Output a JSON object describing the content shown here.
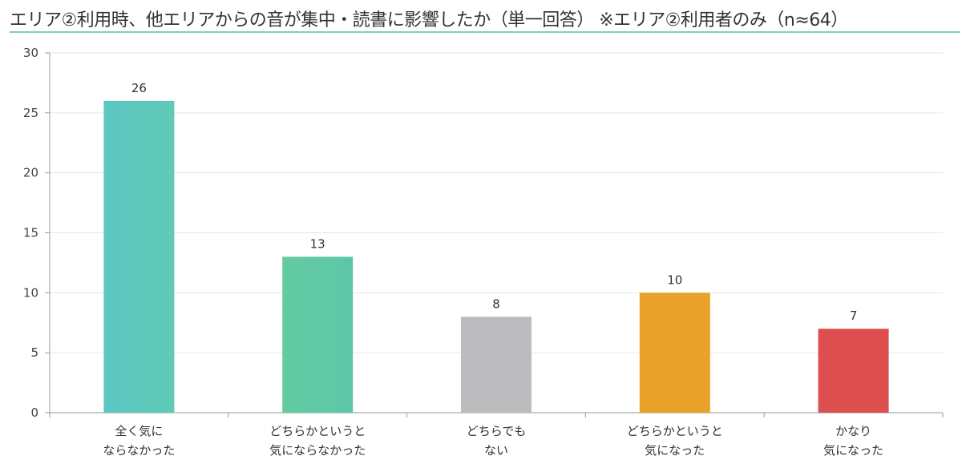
{
  "title": "エリア②利用時、他エリアからの音が集中・読書に影響したか（単一回答） ※エリア②利用者のみ（n≈64）",
  "colors": {
    "title_rule": "#7ccfc0",
    "gridline": "#e6e6e6",
    "axis": "#999999"
  },
  "chart_data": {
    "type": "bar",
    "categories": [
      [
        "全く気に",
        "ならなかった"
      ],
      [
        "どちらかというと",
        "気にならなかった"
      ],
      [
        "どちらでも",
        "ない"
      ],
      [
        "どちらかというと",
        "気になった"
      ],
      [
        "かなり",
        "気になった"
      ]
    ],
    "values": [
      26,
      13,
      8,
      10,
      7
    ],
    "bar_colors": [
      [
        "#5cc6c4",
        "#5fcab4"
      ],
      [
        "#62cba0",
        "#5ec6a8"
      ],
      [
        "#bcbcbf",
        "#bcbcbf"
      ],
      [
        "#e8a22a",
        "#e8a22a"
      ],
      [
        "#dc4f4e",
        "#dc4f4e"
      ]
    ],
    "ylim": [
      0,
      30
    ],
    "yticks": [
      0,
      5,
      10,
      15,
      20,
      25,
      30
    ],
    "grid": true,
    "legend": "none",
    "xlabel": "",
    "ylabel": ""
  }
}
